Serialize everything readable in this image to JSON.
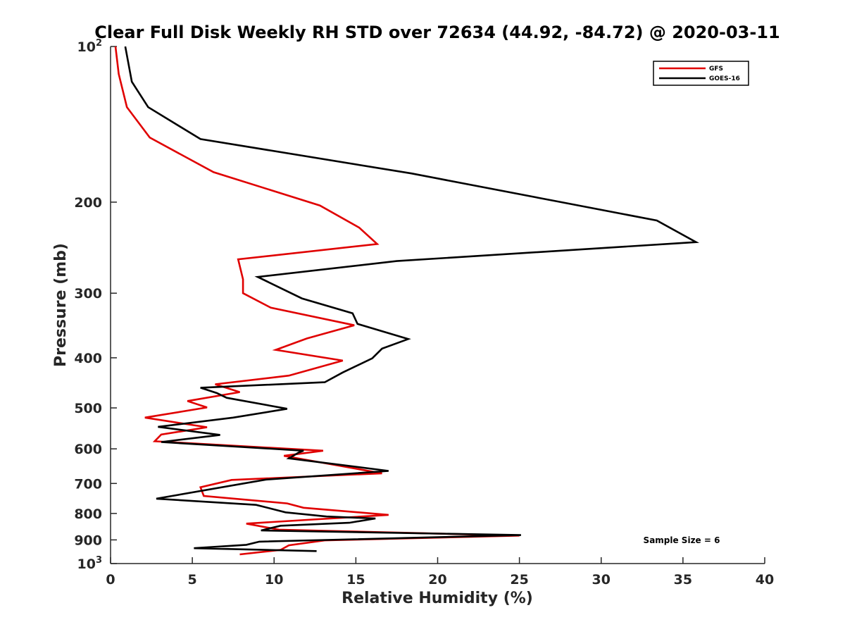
{
  "chart_data": {
    "type": "line",
    "title": "Clear Full Disk Weekly RH STD over 72634 (44.92, -84.72) @ 2020-03-11",
    "xlabel": "Relative Humidity (%)",
    "ylabel": "Pressure (mb)",
    "xlim": [
      0,
      40
    ],
    "ylim": [
      100,
      1000
    ],
    "yscale": "log",
    "yreversed": true,
    "grid": false,
    "xticks": [
      0,
      5,
      10,
      15,
      20,
      25,
      30,
      35,
      40
    ],
    "xtick_labels": [
      "0",
      "5",
      "10",
      "15",
      "20",
      "25",
      "30",
      "35",
      "40"
    ],
    "yticks": [
      {
        "value": 100,
        "base": "10",
        "exp": "2"
      },
      {
        "value": 200,
        "label": "200"
      },
      {
        "value": 300,
        "label": "300"
      },
      {
        "value": 400,
        "label": "400"
      },
      {
        "value": 500,
        "label": "500"
      },
      {
        "value": 600,
        "label": "600"
      },
      {
        "value": 700,
        "label": "700"
      },
      {
        "value": 800,
        "label": "800"
      },
      {
        "value": 900,
        "label": "900"
      },
      {
        "value": 1000,
        "base": "10",
        "exp": "3"
      }
    ],
    "legend_position": "top-right",
    "annotation": "Sample Size = 6",
    "series": [
      {
        "name": "GFS",
        "color": "#e00000",
        "x": [
          0.3,
          0.5,
          1.0,
          2.4,
          6.3,
          12.8,
          15.2,
          16.3,
          7.8,
          8.1,
          8.1,
          9.8,
          14.9,
          12.0,
          10.1,
          14.2,
          10.9,
          6.4,
          7.9,
          4.7,
          5.9,
          2.1,
          5.9,
          3.1,
          2.7,
          13.0,
          10.6,
          16.6,
          7.4,
          5.5,
          5.7,
          10.8,
          11.8,
          17.0,
          8.3,
          10.3,
          25.0,
          13.1,
          10.9,
          10.4,
          7.9
        ],
        "y": [
          100,
          113,
          131,
          150,
          175,
          203,
          224,
          241,
          258,
          282,
          300,
          320,
          346,
          367,
          386,
          405,
          433,
          450,
          466,
          485,
          499,
          522,
          545,
          563,
          580,
          605,
          619,
          669,
          689,
          712,
          740,
          765,
          780,
          805,
          837,
          860,
          883,
          902,
          922,
          941,
          960
        ]
      },
      {
        "name": "GOES-16",
        "color": "#000000",
        "x": [
          0.9,
          1.3,
          2.3,
          5.5,
          18.4,
          27.2,
          33.4,
          35.8,
          17.5,
          9.0,
          11.7,
          14.8,
          15.1,
          18.2,
          16.6,
          16.0,
          14.2,
          13.1,
          5.5,
          6.5,
          7.1,
          10.8,
          7.5,
          2.9,
          6.7,
          3.1,
          11.8,
          11.5,
          10.9,
          17.0,
          9.5,
          2.8,
          8.9,
          10.7,
          13.2,
          16.2,
          14.6,
          10.4,
          9.2,
          25.1,
          9.1,
          8.3,
          5.1,
          12.6
        ],
        "y": [
          100,
          117,
          131,
          151,
          176,
          199,
          217,
          239,
          260,
          279,
          307,
          328,
          344,
          368,
          384,
          401,
          427,
          446,
          457,
          468,
          478,
          502,
          522,
          544,
          564,
          582,
          605,
          610,
          626,
          662,
          688,
          749,
          770,
          796,
          811,
          818,
          834,
          845,
          863,
          881,
          907,
          920,
          934,
          946
        ]
      }
    ]
  }
}
